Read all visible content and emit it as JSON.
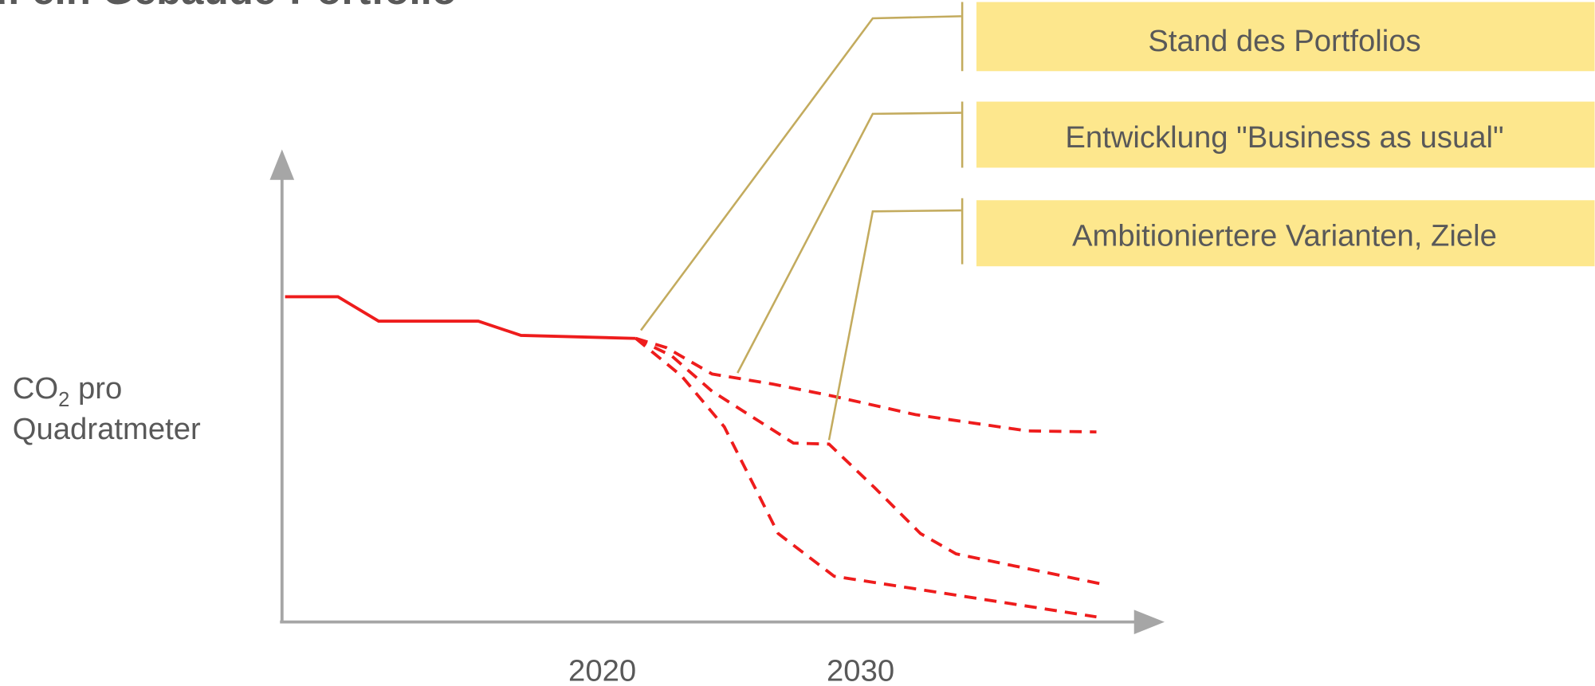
{
  "title": "auf ein Gebäude-Portfolio",
  "y_axis_label": {
    "line1_main": "CO",
    "line1_sub": "2",
    "line1_rest": " pro",
    "line2": "Quadratmeter"
  },
  "x_axis_labels": [
    "2020",
    "2030"
  ],
  "callouts": [
    "Stand des Portfolios",
    "Entwicklung \"Business as usual\"",
    "Ambitioniertere Varianten, Ziele"
  ]
}
